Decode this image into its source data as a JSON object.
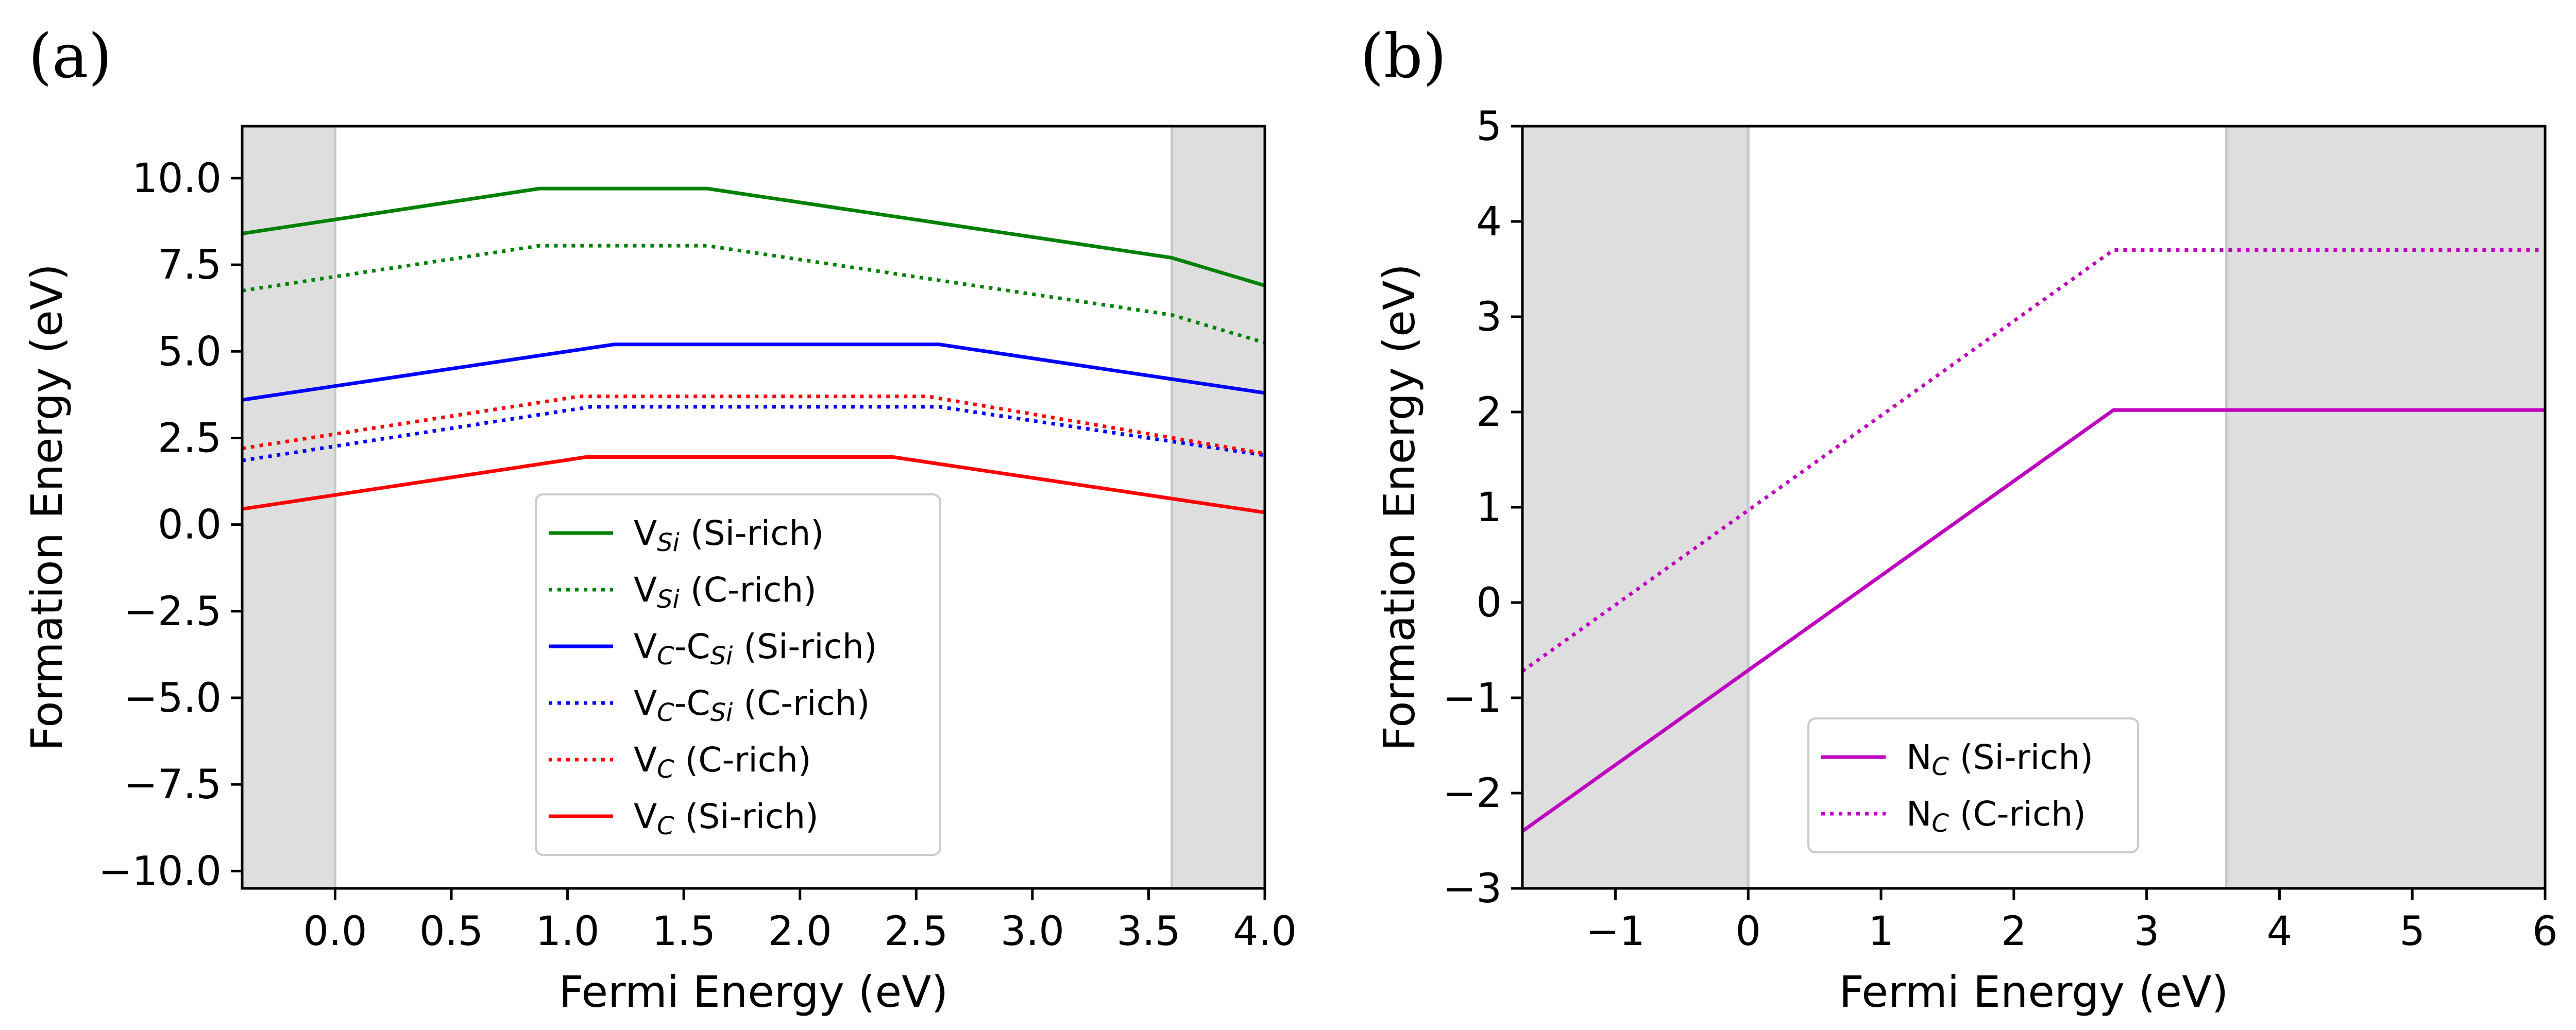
{
  "figure": {
    "panel_labels": [
      "(a)",
      "(b)"
    ]
  },
  "chart_data": [
    {
      "type": "line",
      "panel": "(a)",
      "xlabel": "Fermi Energy (eV)",
      "ylabel": "Formation Energy (eV)",
      "xlim": [
        -0.4,
        4.0
      ],
      "ylim": [
        -10.5,
        11.5
      ],
      "xticks": [
        0.0,
        0.5,
        1.0,
        1.5,
        2.0,
        2.5,
        3.0,
        3.5,
        4.0
      ],
      "xtick_labels": [
        "0.0",
        "0.5",
        "1.0",
        "1.5",
        "2.0",
        "2.5",
        "3.0",
        "3.5",
        "4.0"
      ],
      "yticks": [
        -10.0,
        -7.5,
        -5.0,
        -2.5,
        0.0,
        2.5,
        5.0,
        7.5,
        10.0
      ],
      "ytick_labels": [
        "−10.0",
        "−7.5",
        "−5.0",
        "−2.5",
        "0.0",
        "2.5",
        "5.0",
        "7.5",
        "10.0"
      ],
      "shaded_x_ranges": [
        [
          -0.4,
          0.0
        ],
        [
          3.6,
          4.0
        ]
      ],
      "legend_position": "lower-center",
      "series": [
        {
          "name": "V_Si (Si-rich)",
          "label_main": "V",
          "label_sub": "Si",
          "label_rest": " (Si-rich)",
          "color": "#008000",
          "style": "solid",
          "x": [
            -0.4,
            0.88,
            1.6,
            3.6,
            4.0
          ],
          "y": [
            8.4,
            9.7,
            9.7,
            7.7,
            6.9
          ]
        },
        {
          "name": "V_Si (C-rich)",
          "label_main": "V",
          "label_sub": "Si",
          "label_rest": " (C-rich)",
          "color": "#008000",
          "style": "dotted",
          "x": [
            -0.4,
            0.88,
            1.6,
            3.6,
            4.0
          ],
          "y": [
            6.75,
            8.05,
            8.05,
            6.05,
            5.25
          ]
        },
        {
          "name": "V_C-C_Si (Si-rich)",
          "label_main": "V",
          "label_sub": "C",
          "label_mid": "-C",
          "label_sub2": "Si",
          "label_rest": " (Si-rich)",
          "color": "#0000ff",
          "style": "solid",
          "x": [
            -0.4,
            1.2,
            2.6,
            4.0
          ],
          "y": [
            3.6,
            5.2,
            5.2,
            3.8
          ]
        },
        {
          "name": "V_C-C_Si (C-rich)",
          "label_main": "V",
          "label_sub": "C",
          "label_mid": "-C",
          "label_sub2": "Si",
          "label_rest": " (C-rich)",
          "color": "#0000ff",
          "style": "dotted",
          "x": [
            -0.4,
            1.1,
            2.6,
            4.0
          ],
          "y": [
            1.85,
            3.4,
            3.4,
            2.0
          ]
        },
        {
          "name": "V_C (C-rich)",
          "label_main": "V",
          "label_sub": "C",
          "label_rest": " (C-rich)",
          "color": "#ff0000",
          "style": "dotted",
          "x": [
            -0.4,
            1.05,
            2.55,
            4.0
          ],
          "y": [
            2.2,
            3.7,
            3.7,
            2.05
          ]
        },
        {
          "name": "V_C (Si-rich)",
          "label_main": "V",
          "label_sub": "C",
          "label_rest": " (Si-rich)",
          "color": "#ff0000",
          "style": "solid",
          "x": [
            -0.4,
            1.08,
            2.4,
            4.0
          ],
          "y": [
            0.45,
            1.95,
            1.95,
            0.35
          ]
        }
      ]
    },
    {
      "type": "line",
      "panel": "(b)",
      "xlabel": "Fermi Energy (eV)",
      "ylabel": "Formation Energy (eV)",
      "xlim": [
        -1.7,
        6.0
      ],
      "ylim": [
        -3.0,
        5.0
      ],
      "xticks": [
        -1,
        0,
        1,
        2,
        3,
        4,
        5,
        6
      ],
      "xtick_labels": [
        "−1",
        "0",
        "1",
        "2",
        "3",
        "4",
        "5",
        "6"
      ],
      "yticks": [
        -3,
        -2,
        -1,
        0,
        1,
        2,
        3,
        4,
        5
      ],
      "ytick_labels": [
        "−3",
        "−2",
        "−1",
        "0",
        "1",
        "2",
        "3",
        "4",
        "5"
      ],
      "shaded_x_ranges": [
        [
          -1.7,
          0.0
        ],
        [
          3.6,
          6.0
        ]
      ],
      "legend_position": "lower-center",
      "series": [
        {
          "name": "N_C (Si-rich)",
          "label_main": "N",
          "label_sub": "C",
          "label_rest": " (Si-rich)",
          "color": "#bf00bf",
          "style": "solid",
          "x": [
            -1.7,
            2.75,
            6.0
          ],
          "y": [
            -2.4,
            2.02,
            2.02
          ]
        },
        {
          "name": "N_C (C-rich)",
          "label_main": "N",
          "label_sub": "C",
          "label_rest": " (C-rich)",
          "color": "#bf00bf",
          "style": "dotted",
          "x": [
            -1.7,
            2.75,
            6.0
          ],
          "y": [
            -0.72,
            3.7,
            3.7
          ]
        }
      ]
    }
  ]
}
